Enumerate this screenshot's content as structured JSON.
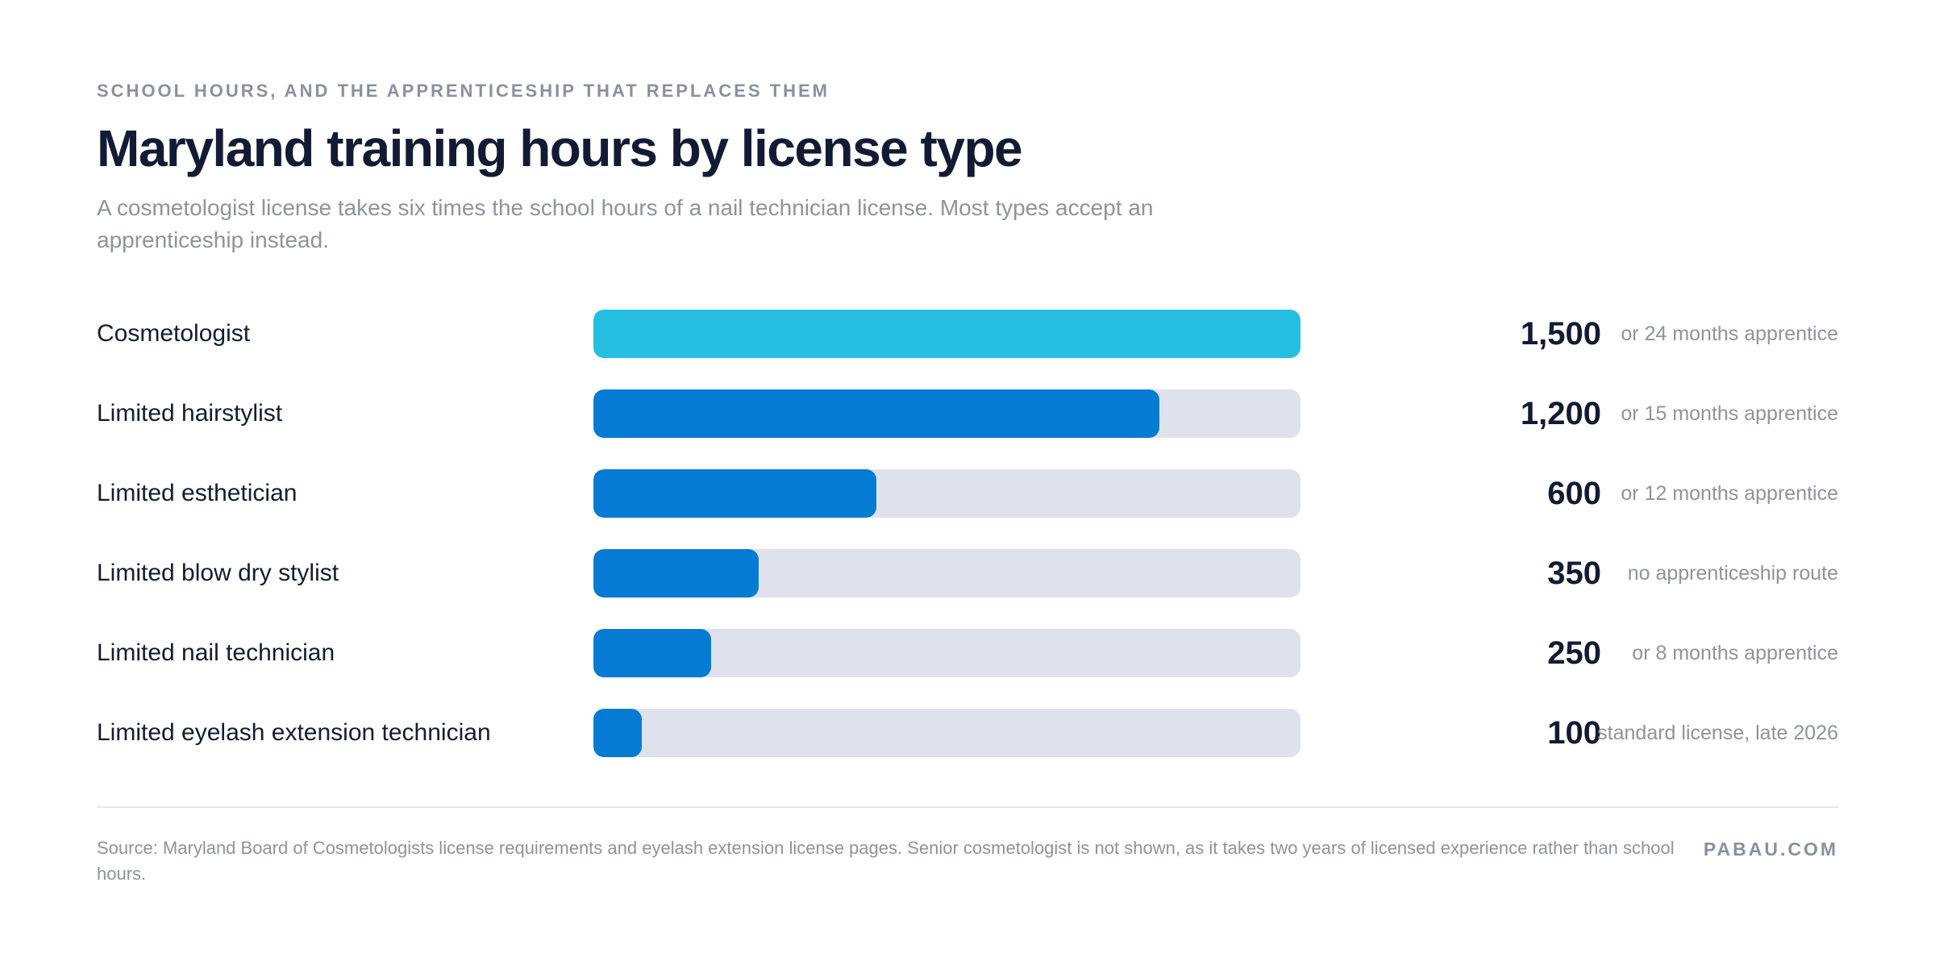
{
  "eyebrow": "SCHOOL HOURS, AND THE APPRENTICESHIP THAT REPLACES THEM",
  "title": "Maryland training hours by license type",
  "subtitle": "A cosmetologist license takes six times the school hours of a nail technician license. Most types accept an apprenticeship instead.",
  "colors": {
    "highlight": "#26bfe1",
    "bar": "#067bd3",
    "track": "#dfe2ec"
  },
  "chart_data": {
    "type": "bar",
    "orientation": "horizontal",
    "categories": [
      "Cosmetologist",
      "Limited hairstylist",
      "Limited esthetician",
      "Limited blow dry stylist",
      "Limited nail technician",
      "Limited eyelash extension technician"
    ],
    "values": [
      1500,
      1200,
      600,
      350,
      250,
      100
    ],
    "value_labels": [
      "1,500",
      "1,200",
      "600",
      "350",
      "250",
      "100"
    ],
    "notes": [
      "or 24 months apprentice",
      "or 15 months apprentice",
      "or 12 months apprentice",
      "no apprenticeship route",
      "or 8 months apprentice",
      "standard license, late 2026"
    ],
    "highlighted_index": 0,
    "xlim": [
      0,
      1500
    ],
    "grid": false,
    "legend": "none"
  },
  "footer": {
    "source": "Source: Maryland Board of Cosmetologists license requirements and eyelash extension license pages. Senior cosmetologist is not shown, as it takes two years of licensed experience rather than school hours.",
    "brand": "PABAU.COM"
  }
}
